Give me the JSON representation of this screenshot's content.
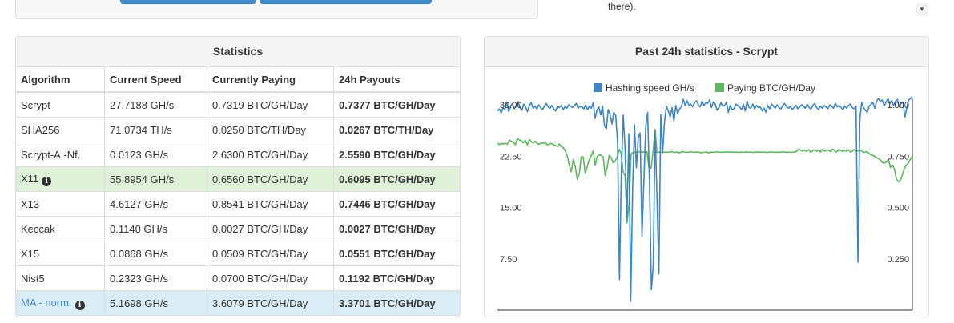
{
  "top_text": "there).",
  "stats": {
    "title": "Statistics",
    "headers": [
      "Algorithm",
      "Current Speed",
      "Currently Paying",
      "24h Payouts"
    ],
    "rows": [
      {
        "algorithm": "Scrypt",
        "speed": "27.7188 GH/s",
        "paying": "0.7319 BTC/GH/Day",
        "payouts": "0.7377 BTC/GH/Day",
        "style": ""
      },
      {
        "algorithm": "SHA256",
        "speed": "71.0734 TH/s",
        "paying": "0.0250 BTC/TH/Day",
        "payouts": "0.0267 BTC/TH/Day",
        "style": ""
      },
      {
        "algorithm": "Scrypt-A.-Nf.",
        "speed": "0.0123 GH/s",
        "paying": "2.6300 BTC/GH/Day",
        "payouts": "2.5590 BTC/GH/Day",
        "style": ""
      },
      {
        "algorithm": "X11",
        "speed": "55.8954 GH/s",
        "paying": "0.6560 BTC/GH/Day",
        "payouts": "0.6095 BTC/GH/Day",
        "style": "success",
        "info_icon": true
      },
      {
        "algorithm": "X13",
        "speed": "4.6127 GH/s",
        "paying": "0.8541 BTC/GH/Day",
        "payouts": "0.7446 BTC/GH/Day",
        "style": ""
      },
      {
        "algorithm": "Keccak",
        "speed": "0.1140 GH/s",
        "paying": "0.0027 BTC/GH/Day",
        "payouts": "0.0027 BTC/GH/Day",
        "style": ""
      },
      {
        "algorithm": "X15",
        "speed": "0.0868 GH/s",
        "paying": "0.0509 BTC/GH/Day",
        "payouts": "0.0551 BTC/GH/Day",
        "style": ""
      },
      {
        "algorithm": "Nist5",
        "speed": "0.2323 GH/s",
        "paying": "0.0700 BTC/GH/Day",
        "payouts": "0.1192 BTC/GH/Day",
        "style": ""
      },
      {
        "algorithm": "MA - norm.",
        "speed": "5.1698 GH/s",
        "paying": "3.6079 BTC/GH/Day",
        "payouts": "3.3701 BTC/GH/Day",
        "style": "info",
        "info_icon": true,
        "link": true
      }
    ]
  },
  "chart_panel": {
    "title": "Past 24h statistics - Scrypt"
  },
  "chart_data": {
    "type": "line",
    "title": "Past 24h statistics - Scrypt",
    "legend_position": "top",
    "grid": false,
    "y_left": {
      "ticks": [
        "30.00",
        "22.50",
        "15.00",
        "7.50"
      ],
      "range": [
        0,
        30
      ]
    },
    "y_right": {
      "ticks": [
        "1.000",
        "0.750",
        "0.500",
        "0.250"
      ],
      "range": [
        0,
        1
      ]
    },
    "series": [
      {
        "name": "Hashing speed GH/s",
        "color": "#3d85c6",
        "axis": "left",
        "values": [
          29.1,
          29.4,
          28.8,
          29.6,
          29.3,
          30.4,
          29.0,
          29.8,
          30.2,
          29.4,
          29.9,
          30.5,
          29.6,
          29.2,
          30.1,
          29.7,
          29.0,
          29.9,
          30.3,
          29.5,
          29.8,
          29.4,
          30.0,
          29.6,
          29.3,
          29.8,
          30.2,
          29.7,
          29.5,
          29.9,
          29.4,
          29.1,
          29.8,
          29.6,
          29.9,
          29.3,
          29.7,
          29.5,
          30.0,
          29.8,
          29.6,
          29.9,
          30.2,
          29.5,
          29.8,
          29.7,
          29.4,
          30.0,
          29.3,
          29.8,
          29.5,
          30.3,
          28.0,
          29.2,
          29.7,
          28.5,
          29.8,
          27.0,
          26.5,
          29.3,
          28.6,
          27.2,
          28.9,
          28.4,
          24.5,
          4.5,
          20.2,
          28.5,
          23.6,
          13.5,
          25.8,
          1.3,
          17.5,
          27.1,
          20.8,
          25.2,
          25.9,
          10.8,
          18.8,
          26.8,
          28.9,
          18.7,
          3.0,
          6.5,
          26.3,
          16.4,
          5.3,
          28.6,
          23.0,
          27.6,
          29.8,
          29.1,
          28.2,
          29.6,
          27.6,
          29.9,
          28.7,
          29.4,
          29.7,
          30.8,
          29.9,
          30.6,
          29.9,
          30.1,
          29.7,
          30.3,
          30.6,
          30.0,
          29.7,
          30.5,
          29.9,
          30.3,
          30.2,
          30.7,
          29.6,
          30.4,
          30.1,
          29.2,
          29.6,
          30.3,
          29.8,
          29.9,
          30.4,
          28.9,
          29.9,
          29.3,
          29.4,
          30.1,
          29.9,
          29.7,
          29.3,
          30.1,
          29.1,
          30.5,
          29.6,
          29.5,
          30.1,
          29.4,
          29.9,
          29.6,
          29.7,
          29.1,
          29.5,
          28.9,
          29.9,
          29.4,
          30.1,
          29.8,
          29.5,
          30.0,
          29.6,
          29.4,
          29.9,
          30.2,
          29.7,
          29.5,
          29.8,
          29.3,
          29.6,
          29.9,
          29.4,
          29.7,
          30.0,
          29.8,
          29.5,
          30.1,
          29.6,
          29.4,
          29.9,
          30.2,
          29.6,
          29.3,
          29.8,
          29.5,
          29.9,
          29.7,
          29.4,
          30.0,
          29.8,
          29.5,
          30.2,
          29.7,
          29.9,
          29.6,
          29.3,
          29.8,
          29.5,
          29.9,
          30.1,
          29.6,
          29.4,
          29.8,
          7.0,
          27.8,
          30.3,
          29.6,
          29.2,
          28.9,
          29.8,
          30.1,
          30.3,
          29.5,
          30.6,
          30.9,
          30.5,
          30.7,
          29.8,
          30.4,
          30.9,
          30.2,
          30.6,
          29.9,
          30.5,
          30.8,
          29.7,
          30.2,
          30.4,
          28.2,
          29.5,
          30.7,
          30.9,
          31.2
        ]
      },
      {
        "name": "Paying BTC/GH/Day",
        "color": "#5cb85c",
        "axis": "right",
        "values": [
          0.813,
          0.806,
          0.812,
          0.809,
          0.813,
          0.808,
          0.828,
          0.822,
          0.818,
          0.805,
          0.836,
          0.829,
          0.826,
          0.815,
          0.827,
          0.804,
          0.831,
          0.82,
          0.814,
          0.823,
          0.811,
          0.808,
          0.815,
          0.812,
          0.817,
          0.805,
          0.809,
          0.812,
          0.806,
          0.802,
          0.798,
          0.81,
          0.796,
          0.792,
          0.775,
          0.752,
          0.706,
          0.674,
          0.733,
          0.7,
          0.637,
          0.662,
          0.746,
          0.746,
          0.667,
          0.698,
          0.733,
          0.752,
          0.776,
          0.704,
          0.748,
          0.755,
          0.754,
          0.746,
          0.656,
          0.695,
          0.754,
          0.743,
          0.718,
          0.725,
          0.746,
          0.783,
          0.765,
          0.672,
          0.655,
          0.425,
          0.517,
          0.762,
          0.768,
          0.769,
          0.77,
          0.771,
          0.77,
          0.77,
          0.77,
          0.77,
          0.69,
          0.691,
          0.769,
          0.88,
          0.768,
          0.77,
          0.769,
          0.769,
          0.77,
          0.769,
          0.77,
          0.772,
          0.77,
          0.768,
          0.771,
          0.766,
          0.77,
          0.772,
          0.77,
          0.769,
          0.77,
          0.771,
          0.77,
          0.769,
          0.771,
          0.77,
          0.766,
          0.768,
          0.769,
          0.77,
          0.766,
          0.77,
          0.769,
          0.77,
          0.771,
          0.77,
          0.769,
          0.77,
          0.769,
          0.772,
          0.769,
          0.77,
          0.771,
          0.769,
          0.77,
          0.768,
          0.77,
          0.769,
          0.77,
          0.771,
          0.769,
          0.77,
          0.768,
          0.77,
          0.771,
          0.769,
          0.77,
          0.769,
          0.77,
          0.768,
          0.77,
          0.771,
          0.769,
          0.77,
          0.768,
          0.77,
          0.769,
          0.771,
          0.77,
          0.769,
          0.77,
          0.768,
          0.77,
          0.771,
          0.773,
          0.785,
          0.778,
          0.775,
          0.78,
          0.772,
          0.782,
          0.77,
          0.776,
          0.781,
          0.774,
          0.779,
          0.771,
          0.783,
          0.775,
          0.778,
          0.78,
          0.772,
          0.785,
          0.776,
          0.77,
          0.782,
          0.778,
          0.773,
          0.779,
          0.774,
          0.781,
          0.77,
          0.775,
          0.783,
          0.772,
          0.777,
          0.78,
          0.771,
          0.769,
          0.772,
          0.766,
          0.758,
          0.755,
          0.749,
          0.744,
          0.738,
          0.731,
          0.718,
          0.716,
          0.722,
          0.735,
          0.694,
          0.706,
          0.686,
          0.64,
          0.625,
          0.631,
          0.66,
          0.689,
          0.706,
          0.716,
          0.735,
          0.749
        ]
      }
    ]
  }
}
